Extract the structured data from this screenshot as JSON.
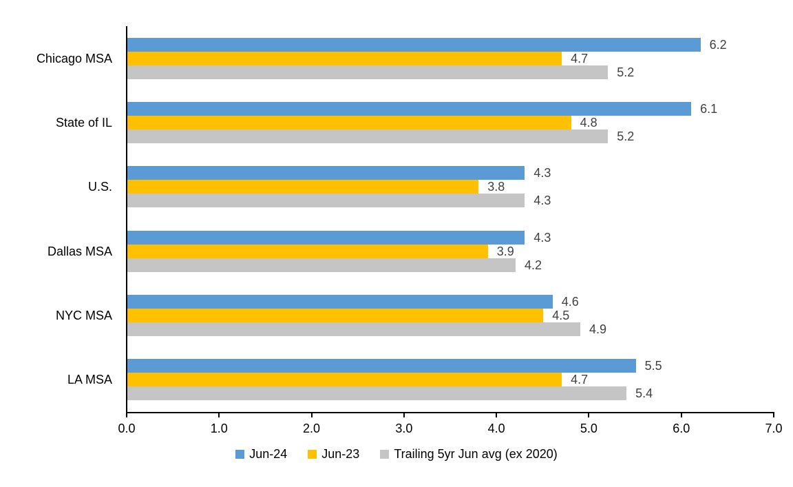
{
  "chart_data": {
    "type": "bar",
    "orientation": "horizontal",
    "title": "",
    "xlabel": "",
    "ylabel": "",
    "categories": [
      "Chicago MSA",
      "State of IL",
      "U.S.",
      "Dallas MSA",
      "NYC MSA",
      "LA MSA"
    ],
    "series": [
      {
        "name": "Jun-24",
        "color": "#5B9BD5",
        "values": [
          6.2,
          6.1,
          4.3,
          4.3,
          4.6,
          5.5
        ]
      },
      {
        "name": "Jun-23",
        "color": "#FFC000",
        "values": [
          4.7,
          4.8,
          3.8,
          3.9,
          4.5,
          4.7
        ]
      },
      {
        "name": "Trailing 5yr Jun avg (ex 2020)",
        "color": "#C5C5C5",
        "values": [
          5.2,
          5.2,
          4.3,
          4.2,
          4.9,
          5.4
        ]
      }
    ],
    "xlim": [
      0,
      7
    ],
    "x_ticks": [
      "0.0",
      "1.0",
      "2.0",
      "3.0",
      "4.0",
      "5.0",
      "6.0",
      "7.0"
    ],
    "value_labels_shown": true,
    "value_label_color": "#404040",
    "axis_color": "#000000",
    "grid": false,
    "legend_position": "bottom"
  }
}
